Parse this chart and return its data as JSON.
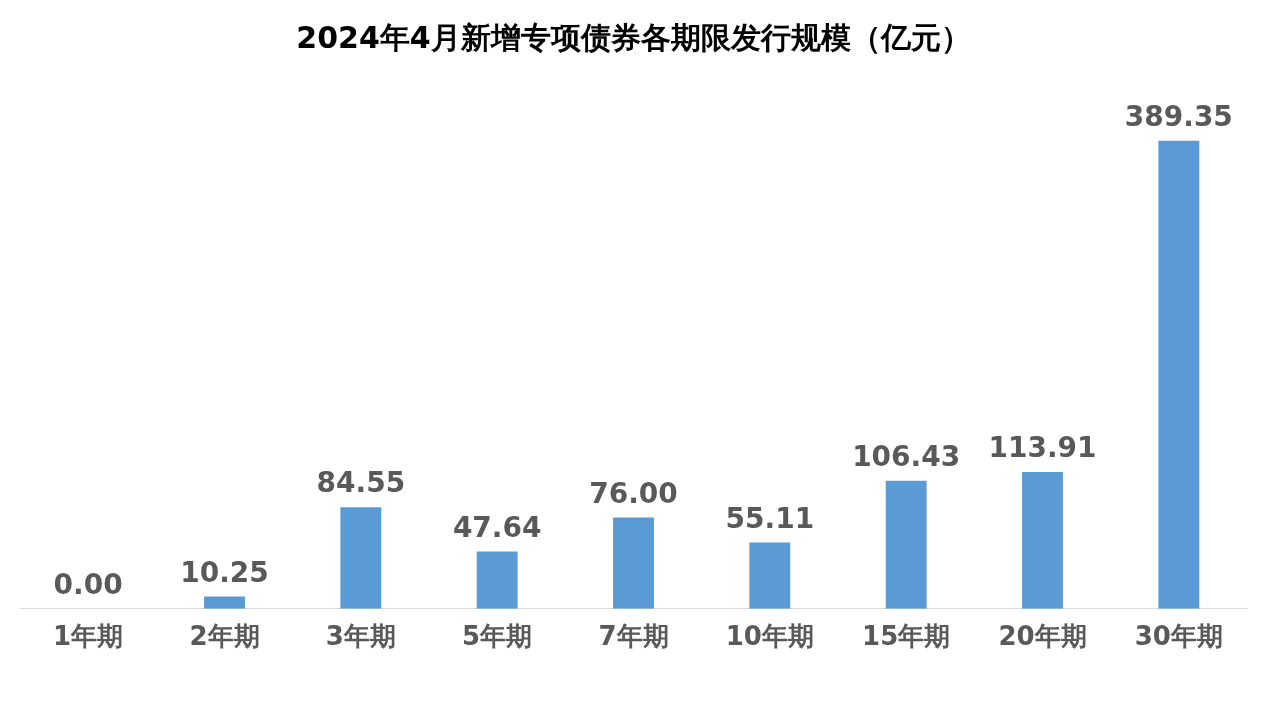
{
  "chart_data": {
    "type": "bar",
    "title": "2024年4月新增专项债券各期限发行规模（亿元）",
    "categories": [
      "1年期",
      "2年期",
      "3年期",
      "5年期",
      "7年期",
      "10年期",
      "15年期",
      "20年期",
      "30年期"
    ],
    "values": [
      0,
      10.25,
      84.55,
      47.64,
      76,
      55.11,
      106.43,
      113.91,
      389.35
    ],
    "value_labels": [
      "0.00",
      "10.25",
      "84.55",
      "47.64",
      "76.00",
      "55.11",
      "106.43",
      "113.91",
      "389.35"
    ],
    "color": "#5b9bd5",
    "grid": false,
    "legend": false
  }
}
